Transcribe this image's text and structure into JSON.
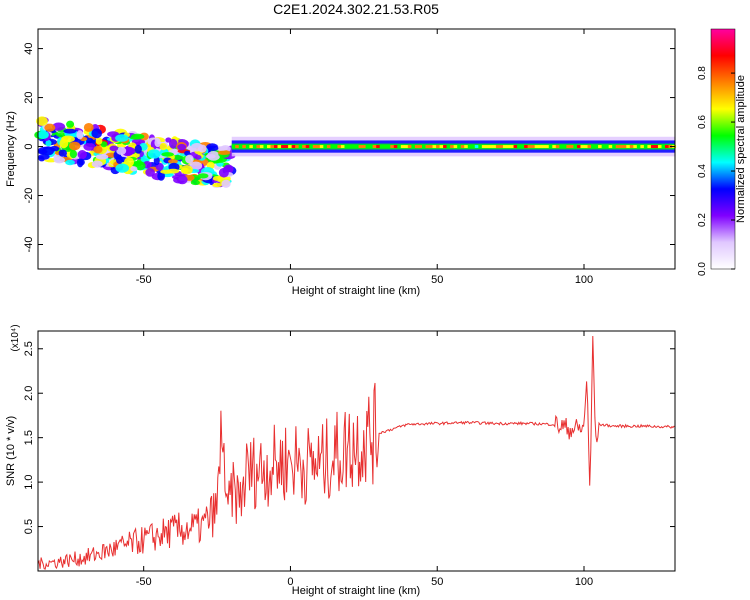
{
  "title": "C2E1.2024.302.21.53.R05",
  "chart_data": [
    {
      "type": "heatmap",
      "xlabel": "Height of straight line (km)",
      "ylabel": "Frequency (Hz)",
      "xlim": [
        -86,
        131
      ],
      "ylim": [
        -50,
        48
      ],
      "xticks": [
        -50,
        0,
        50,
        100
      ],
      "yticks": [
        -40,
        -20,
        0,
        20,
        40
      ],
      "tick_labels_x": [
        "-50",
        "0",
        "50",
        "100"
      ],
      "tick_labels_y": [
        "-40",
        "-20",
        "0",
        "20",
        "40"
      ],
      "colorbar": {
        "label": "Normalized spectral amplitude",
        "range": [
          0.0,
          0.98
        ],
        "ticks": [
          0.0,
          0.2,
          0.4,
          0.6,
          0.8
        ],
        "tick_labels": [
          "0.0",
          "0.2",
          "0.4",
          "0.6",
          "0.8"
        ],
        "colors": [
          "#ffffff",
          "#e0c8ff",
          "#8000ff",
          "#0000ff",
          "#00ffff",
          "#00ff00",
          "#ffff00",
          "#ff8000",
          "#ff0000",
          "#ff00a0"
        ]
      },
      "features": [
        {
          "x": [
            -85,
            -20
          ],
          "freq_center": 3,
          "freq_spread": 8,
          "amplitude": 0.35,
          "note": "scattered blobs"
        },
        {
          "x": [
            -20,
            131
          ],
          "freq_center": 0,
          "amplitude": 0.9,
          "note": "narrow line near 0 Hz"
        }
      ]
    },
    {
      "type": "line",
      "xlabel": "Height of straight line (km)",
      "ylabel": "SNR (10 * v/v)",
      "yscale_label": "(x10⁴)",
      "xlim": [
        -86,
        131
      ],
      "ylim": [
        0.0,
        2.7
      ],
      "xticks": [
        -50,
        0,
        50,
        100
      ],
      "yticks": [
        0.5,
        1.0,
        1.5,
        2.0,
        2.5
      ],
      "tick_labels_x": [
        "-50",
        "0",
        "50",
        "100"
      ],
      "tick_labels_y": [
        "0.5",
        "1.0",
        "1.5",
        "2.0",
        "2.5"
      ],
      "line_color": "#e83030",
      "series": [
        {
          "x": [
            -86,
            -80,
            -70,
            -60,
            -50,
            -40,
            -30,
            -25,
            -23,
            -22,
            -20,
            -17,
            -15,
            -10,
            -5,
            0,
            5,
            10,
            15,
            20,
            25,
            30,
            35,
            40,
            50,
            60,
            70,
            80,
            90,
            95,
            100,
            101,
            102,
            103,
            104,
            105,
            110,
            120,
            131
          ],
          "y": [
            0.08,
            0.1,
            0.15,
            0.25,
            0.35,
            0.45,
            0.5,
            0.7,
            1.8,
            0.6,
            0.9,
            0.8,
            1.1,
            1.15,
            1.2,
            1.25,
            1.2,
            1.2,
            1.3,
            1.4,
            1.5,
            1.55,
            1.6,
            1.65,
            1.66,
            1.67,
            1.66,
            1.66,
            1.65,
            1.6,
            1.6,
            2.25,
            0.8,
            2.65,
            1.4,
            1.65,
            1.63,
            1.63,
            1.62
          ]
        }
      ]
    }
  ]
}
